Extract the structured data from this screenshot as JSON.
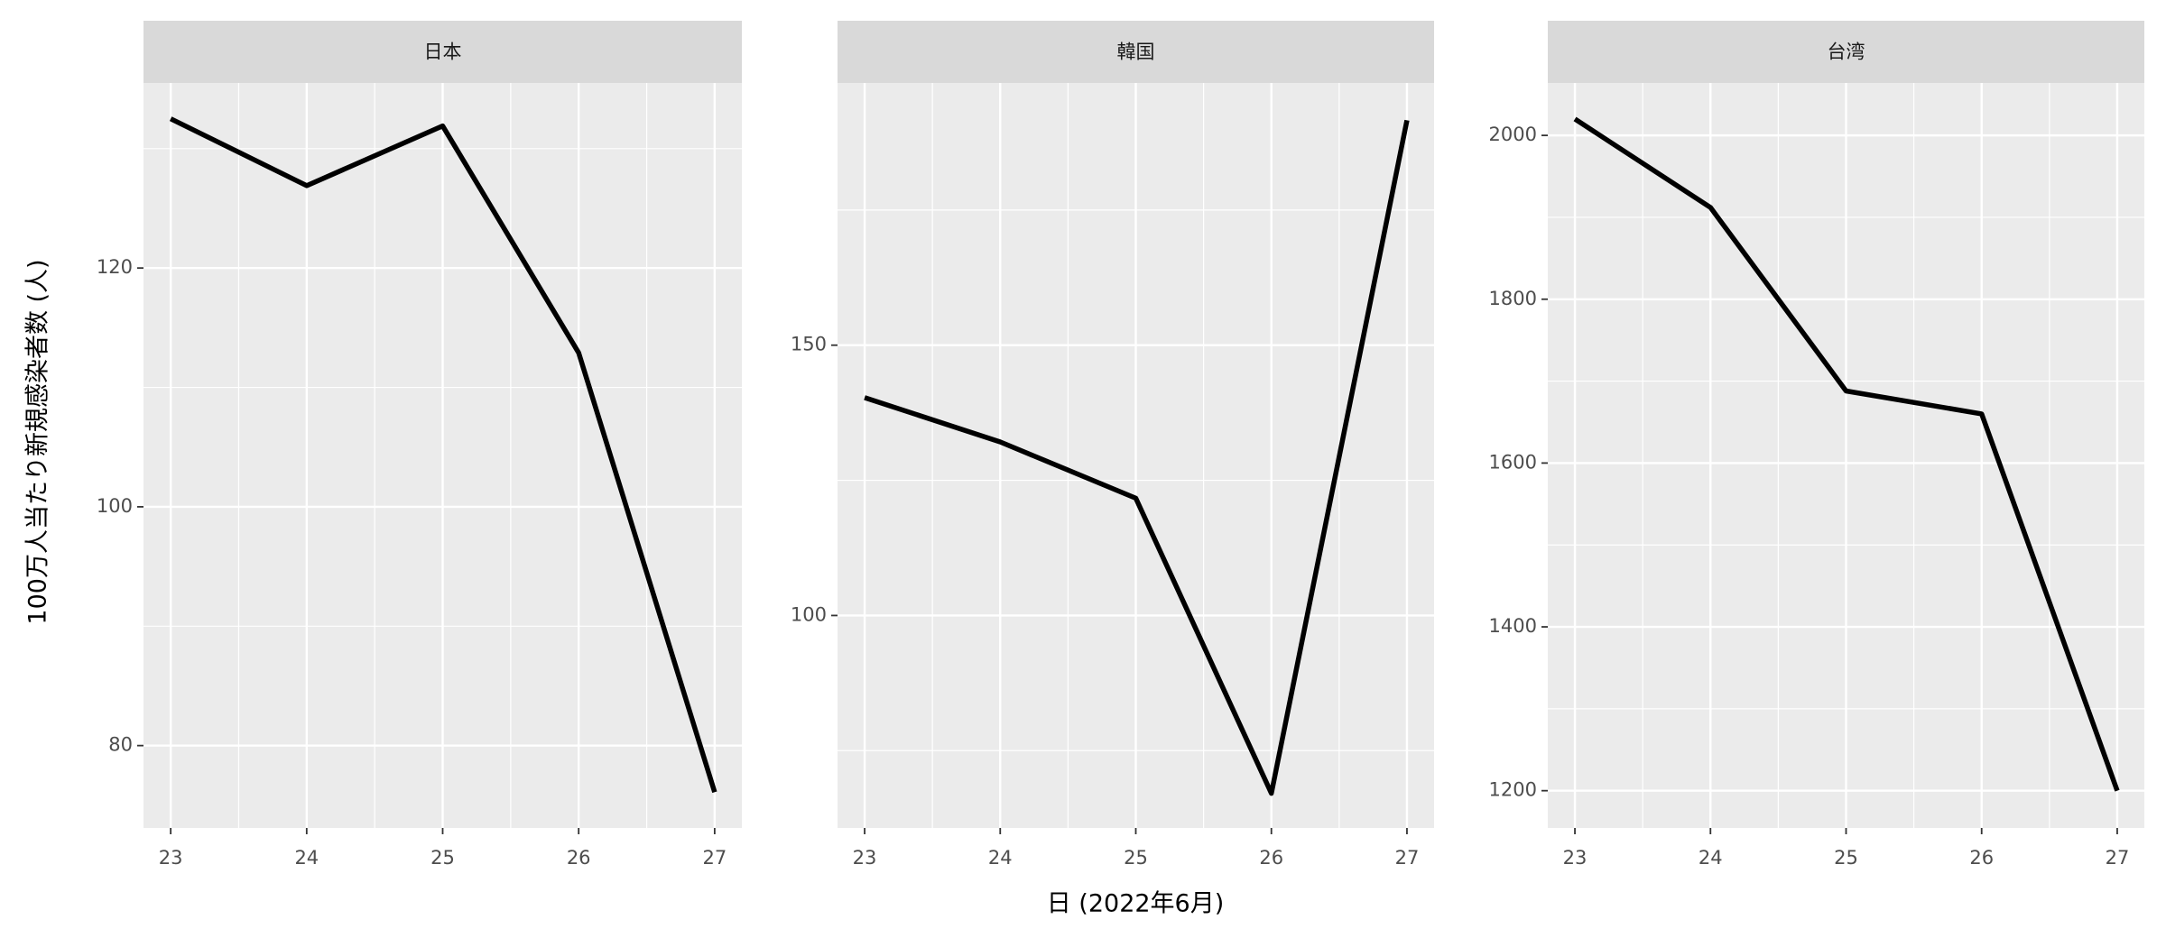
{
  "axis_labels": {
    "x": "日 (2022年6月)",
    "y": "100万人当たり新規感染者数 (人)"
  },
  "chart_data": [
    {
      "type": "line",
      "title": "日本",
      "x": [
        23,
        24,
        25,
        26,
        27
      ],
      "values": [
        132.5,
        126.9,
        131.9,
        112.9,
        76.1
      ],
      "color": "#000000",
      "xlim": [
        22.8,
        27.2
      ],
      "xticks": [
        23,
        24,
        25,
        26,
        27
      ],
      "ylim": [
        73.1,
        135.5
      ],
      "yticks": [
        80,
        100,
        120
      ],
      "grid": true
    },
    {
      "type": "line",
      "title": "韓国",
      "x": [
        23,
        24,
        25,
        26,
        27
      ],
      "values": [
        140.3,
        132.1,
        121.7,
        67.1,
        191.6
      ],
      "color": "#000000",
      "xlim": [
        22.8,
        27.2
      ],
      "xticks": [
        23,
        24,
        25,
        26,
        27
      ],
      "ylim": [
        60.7,
        198.5
      ],
      "yticks": [
        100,
        150
      ],
      "grid": true
    },
    {
      "type": "line",
      "title": "台湾",
      "x": [
        23,
        24,
        25,
        26,
        27
      ],
      "values": [
        2020,
        1912,
        1688,
        1660,
        1200
      ],
      "color": "#000000",
      "xlim": [
        22.8,
        27.2
      ],
      "xticks": [
        23,
        24,
        25,
        26,
        27
      ],
      "ylim": [
        1154.5,
        2064
      ],
      "yticks": [
        1200,
        1400,
        1600,
        1800,
        2000
      ],
      "grid": true
    }
  ]
}
